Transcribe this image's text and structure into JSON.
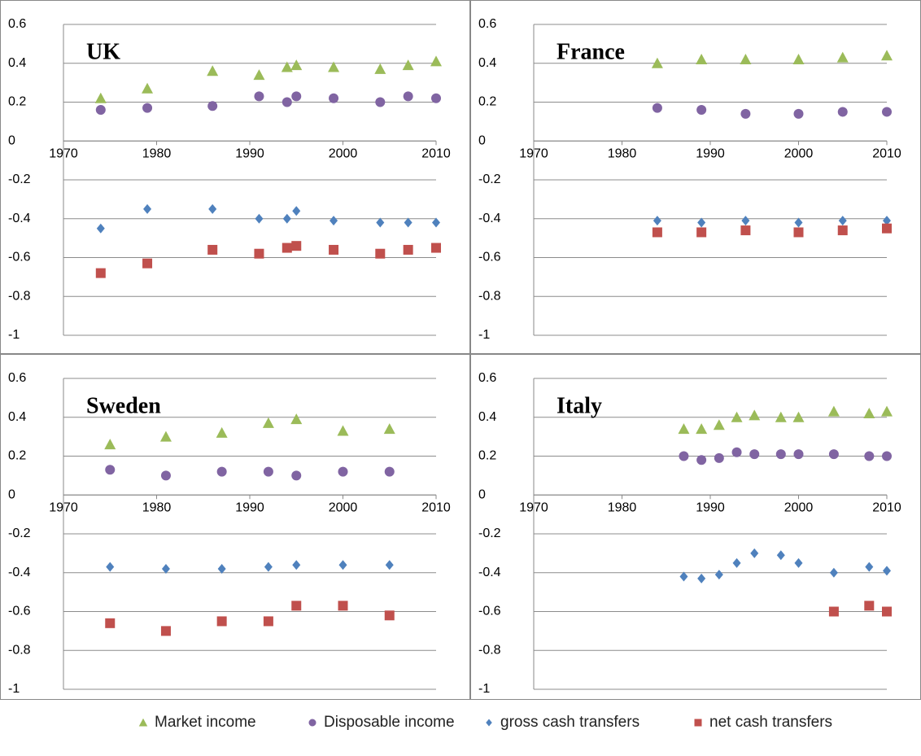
{
  "chart_data": [
    {
      "type": "scatter",
      "title": "UK",
      "x": [
        1974,
        1979,
        1986,
        1991,
        1994,
        1995,
        1999,
        2004,
        2007,
        2010
      ],
      "series": [
        {
          "name": "Market income",
          "color": "#9bbb59",
          "marker": "triangle",
          "values": [
            0.22,
            0.27,
            0.36,
            0.34,
            0.38,
            0.39,
            0.38,
            0.37,
            0.39,
            0.41
          ]
        },
        {
          "name": "Disposable income",
          "color": "#8064a2",
          "marker": "circle",
          "values": [
            0.16,
            0.17,
            0.18,
            0.23,
            0.2,
            0.23,
            0.22,
            0.2,
            0.23,
            0.22
          ]
        },
        {
          "name": "gross cash transfers",
          "color": "#4f81bd",
          "marker": "diamond",
          "values": [
            -0.45,
            -0.35,
            -0.35,
            -0.4,
            -0.4,
            -0.36,
            -0.41,
            -0.42,
            -0.42,
            -0.42
          ]
        },
        {
          "name": "net cash transfers",
          "color": "#c0504d",
          "marker": "square",
          "values": [
            -0.68,
            -0.63,
            -0.56,
            -0.58,
            -0.55,
            -0.54,
            -0.56,
            -0.58,
            -0.56,
            -0.55
          ]
        }
      ],
      "xlim": [
        1970,
        2010
      ],
      "ylim": [
        -1,
        0.6
      ],
      "xticks": [
        1970,
        1980,
        1990,
        2000,
        2010
      ],
      "yticks": [
        0.6,
        0.4,
        0.2,
        0,
        -0.2,
        -0.4,
        -0.6,
        -0.8,
        -1
      ],
      "grid": true
    },
    {
      "type": "scatter",
      "title": "France",
      "x": [
        1984,
        1989,
        1994,
        2000,
        2005,
        2010
      ],
      "series": [
        {
          "name": "Market income",
          "color": "#9bbb59",
          "marker": "triangle",
          "values": [
            0.4,
            0.42,
            0.42,
            0.42,
            0.43,
            0.44
          ]
        },
        {
          "name": "Disposable income",
          "color": "#8064a2",
          "marker": "circle",
          "values": [
            0.17,
            0.16,
            0.14,
            0.14,
            0.15,
            0.15
          ]
        },
        {
          "name": "gross cash transfers",
          "color": "#4f81bd",
          "marker": "diamond",
          "values": [
            -0.41,
            -0.42,
            -0.41,
            -0.42,
            -0.41,
            -0.41
          ]
        },
        {
          "name": "net cash transfers",
          "color": "#c0504d",
          "marker": "square",
          "values": [
            -0.47,
            -0.47,
            -0.46,
            -0.47,
            -0.46,
            -0.45
          ]
        }
      ],
      "xlim": [
        1970,
        2010
      ],
      "ylim": [
        -1,
        0.6
      ],
      "xticks": [
        1970,
        1980,
        1990,
        2000,
        2010
      ],
      "yticks": [
        0.6,
        0.4,
        0.2,
        0,
        -0.2,
        -0.4,
        -0.6,
        -0.8,
        -1
      ],
      "grid": true
    },
    {
      "type": "scatter",
      "title": "Sweden",
      "x": [
        1975,
        1981,
        1987,
        1992,
        1995,
        2000,
        2005
      ],
      "series": [
        {
          "name": "Market income",
          "color": "#9bbb59",
          "marker": "triangle",
          "values": [
            0.26,
            0.3,
            0.32,
            0.37,
            0.39,
            0.33,
            0.34
          ]
        },
        {
          "name": "Disposable income",
          "color": "#8064a2",
          "marker": "circle",
          "values": [
            0.13,
            0.1,
            0.12,
            0.12,
            0.1,
            0.12,
            0.12
          ]
        },
        {
          "name": "gross cash transfers",
          "color": "#4f81bd",
          "marker": "diamond",
          "values": [
            -0.37,
            -0.38,
            -0.38,
            -0.37,
            -0.36,
            -0.36,
            -0.36
          ]
        },
        {
          "name": "net cash transfers",
          "color": "#c0504d",
          "marker": "square",
          "values": [
            -0.66,
            -0.7,
            -0.65,
            -0.65,
            -0.57,
            -0.57,
            -0.62
          ]
        }
      ],
      "xlim": [
        1970,
        2010
      ],
      "ylim": [
        -1,
        0.6
      ],
      "xticks": [
        1970,
        1980,
        1990,
        2000,
        2010
      ],
      "yticks": [
        0.6,
        0.4,
        0.2,
        0,
        -0.2,
        -0.4,
        -0.6,
        -0.8,
        -1
      ],
      "grid": true
    },
    {
      "type": "scatter",
      "title": "Italy",
      "x": [
        1987,
        1989,
        1991,
        1993,
        1995,
        1998,
        2000,
        2004,
        2008,
        2010
      ],
      "series": [
        {
          "name": "Market income",
          "color": "#9bbb59",
          "marker": "triangle",
          "values": [
            0.34,
            0.34,
            0.36,
            0.4,
            0.41,
            0.4,
            0.4,
            0.43,
            0.42,
            0.43
          ]
        },
        {
          "name": "Disposable income",
          "color": "#8064a2",
          "marker": "circle",
          "values": [
            0.2,
            0.18,
            0.19,
            0.22,
            0.21,
            0.21,
            0.21,
            0.21,
            0.2,
            0.2
          ]
        },
        {
          "name": "gross cash transfers",
          "color": "#4f81bd",
          "marker": "diamond",
          "values": [
            -0.42,
            -0.43,
            -0.41,
            -0.35,
            -0.3,
            -0.31,
            -0.35,
            -0.4,
            -0.37,
            -0.39
          ]
        },
        {
          "name": "net cash transfers",
          "color": "#c0504d",
          "marker": "square",
          "values": [
            null,
            null,
            null,
            null,
            null,
            null,
            null,
            -0.6,
            -0.57,
            -0.6
          ]
        }
      ],
      "xlim": [
        1970,
        2010
      ],
      "ylim": [
        -1,
        0.6
      ],
      "xticks": [
        1970,
        1980,
        1990,
        2000,
        2010
      ],
      "yticks": [
        0.6,
        0.4,
        0.2,
        0,
        -0.2,
        -0.4,
        -0.6,
        -0.8,
        -1
      ],
      "grid": true
    }
  ]
}
